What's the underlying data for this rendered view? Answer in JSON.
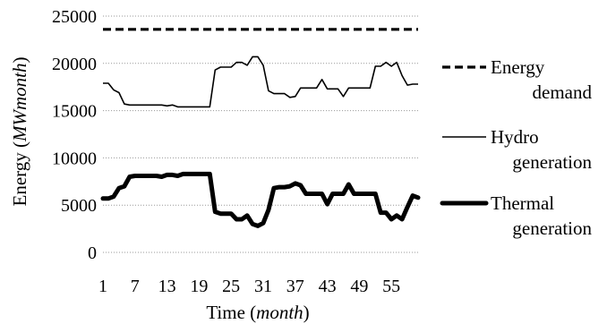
{
  "chart_data": {
    "type": "line",
    "xlabel": "Time (",
    "xlabel_italic": "month",
    "xlabel_end": ")",
    "ylabel": "Energy (",
    "ylabel_italic": "MWmonth",
    "ylabel_end": ")",
    "xlim": [
      1,
      60
    ],
    "ylim": [
      0,
      25000
    ],
    "x_ticks": [
      1,
      7,
      13,
      19,
      25,
      31,
      37,
      43,
      49,
      55
    ],
    "y_ticks": [
      0,
      5000,
      10000,
      15000,
      20000,
      25000
    ],
    "grid": "horizontal dotted",
    "legend_position": "right",
    "x": [
      1,
      2,
      3,
      4,
      5,
      6,
      7,
      8,
      9,
      10,
      11,
      12,
      13,
      14,
      15,
      16,
      17,
      18,
      19,
      20,
      21,
      22,
      23,
      24,
      25,
      26,
      27,
      28,
      29,
      30,
      31,
      32,
      33,
      34,
      35,
      36,
      37,
      38,
      39,
      40,
      41,
      42,
      43,
      44,
      45,
      46,
      47,
      48,
      49,
      50,
      51,
      52,
      53,
      54,
      55,
      56,
      57,
      58,
      59,
      60
    ],
    "series": [
      {
        "name_lines": [
          "Energy",
          "demand"
        ],
        "style": "dashed",
        "values": [
          23600,
          23600,
          23600,
          23600,
          23600,
          23600,
          23600,
          23600,
          23600,
          23600,
          23600,
          23600,
          23600,
          23600,
          23600,
          23600,
          23600,
          23600,
          23600,
          23600,
          23600,
          23600,
          23600,
          23600,
          23600,
          23600,
          23600,
          23600,
          23600,
          23600,
          23600,
          23600,
          23600,
          23600,
          23600,
          23600,
          23600,
          23600,
          23600,
          23600,
          23600,
          23600,
          23600,
          23600,
          23600,
          23600,
          23600,
          23600,
          23600,
          23600,
          23600,
          23600,
          23600,
          23600,
          23600,
          23600,
          23600,
          23600,
          23600,
          23600
        ]
      },
      {
        "name_lines": [
          "Hydro",
          "generation"
        ],
        "style": "thin",
        "values": [
          17900,
          17900,
          17200,
          16900,
          15700,
          15600,
          15600,
          15600,
          15600,
          15600,
          15600,
          15600,
          15500,
          15600,
          15400,
          15400,
          15400,
          15400,
          15400,
          15400,
          15400,
          19300,
          19600,
          19600,
          19600,
          20100,
          20100,
          19800,
          20700,
          20700,
          19800,
          17100,
          16800,
          16800,
          16800,
          16400,
          16500,
          17400,
          17400,
          17400,
          17400,
          18300,
          17300,
          17300,
          17300,
          16500,
          17400,
          17400,
          17400,
          17400,
          17400,
          19700,
          19700,
          20100,
          19700,
          20100,
          18700,
          17700,
          17800,
          17800
        ]
      },
      {
        "name_lines": [
          "Thermal",
          "generation"
        ],
        "style": "thick",
        "values": [
          5700,
          5700,
          5900,
          6800,
          7000,
          8000,
          8100,
          8100,
          8100,
          8100,
          8100,
          8000,
          8200,
          8200,
          8100,
          8300,
          8300,
          8300,
          8300,
          8300,
          8300,
          4300,
          4100,
          4100,
          4100,
          3500,
          3500,
          3900,
          3000,
          2800,
          3100,
          4500,
          6800,
          6900,
          6900,
          7000,
          7300,
          7100,
          6200,
          6200,
          6200,
          6200,
          5100,
          6200,
          6200,
          6200,
          7200,
          6200,
          6200,
          6200,
          6200,
          6200,
          4200,
          4200,
          3500,
          3900,
          3500,
          4800,
          6000,
          5800
        ]
      }
    ]
  }
}
